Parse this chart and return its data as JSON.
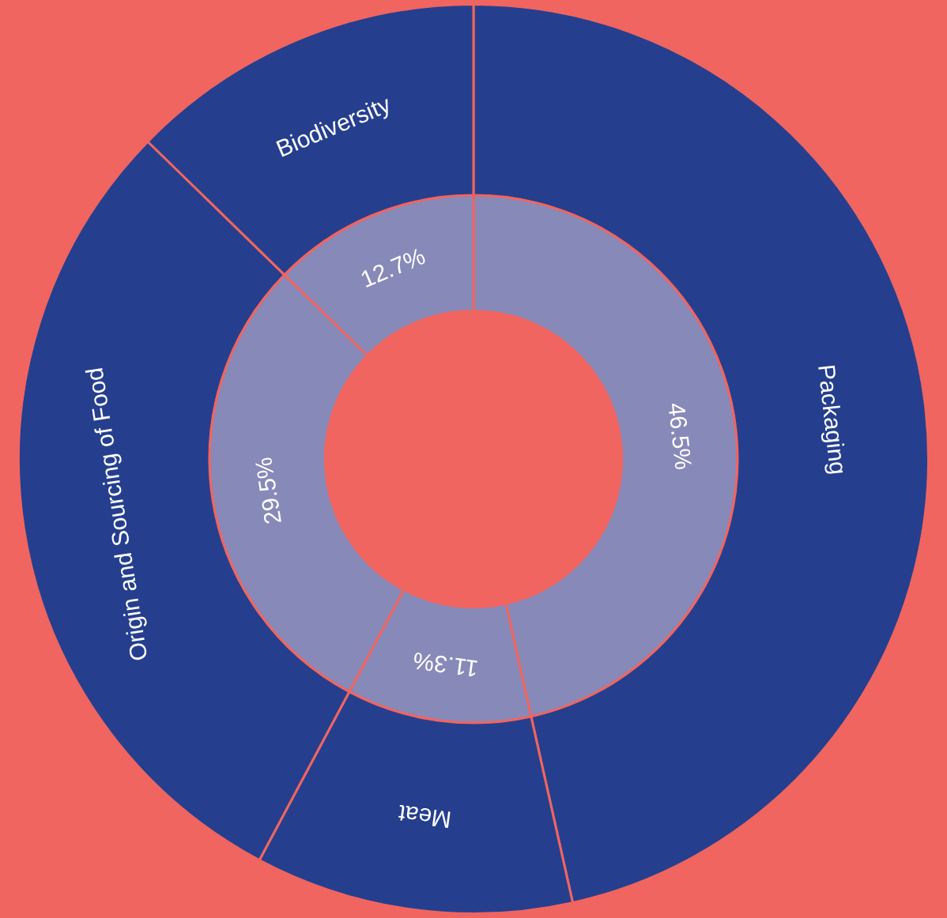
{
  "chart_data": {
    "type": "donut",
    "categories": [
      "Packaging",
      "Meat",
      "Origin and Sourcing of Food",
      "Biodiversity"
    ],
    "series": [
      {
        "color": "#8789b9",
        "values": [
          46.5,
          11.3,
          29.5,
          12.7
        ],
        "value_labels": [
          "46.5%",
          "11.3%",
          "29.5%",
          "12.7%"
        ]
      },
      {
        "color": "#253f8e",
        "values": [
          46.5,
          11.3,
          29.5,
          12.7
        ]
      }
    ]
  }
}
